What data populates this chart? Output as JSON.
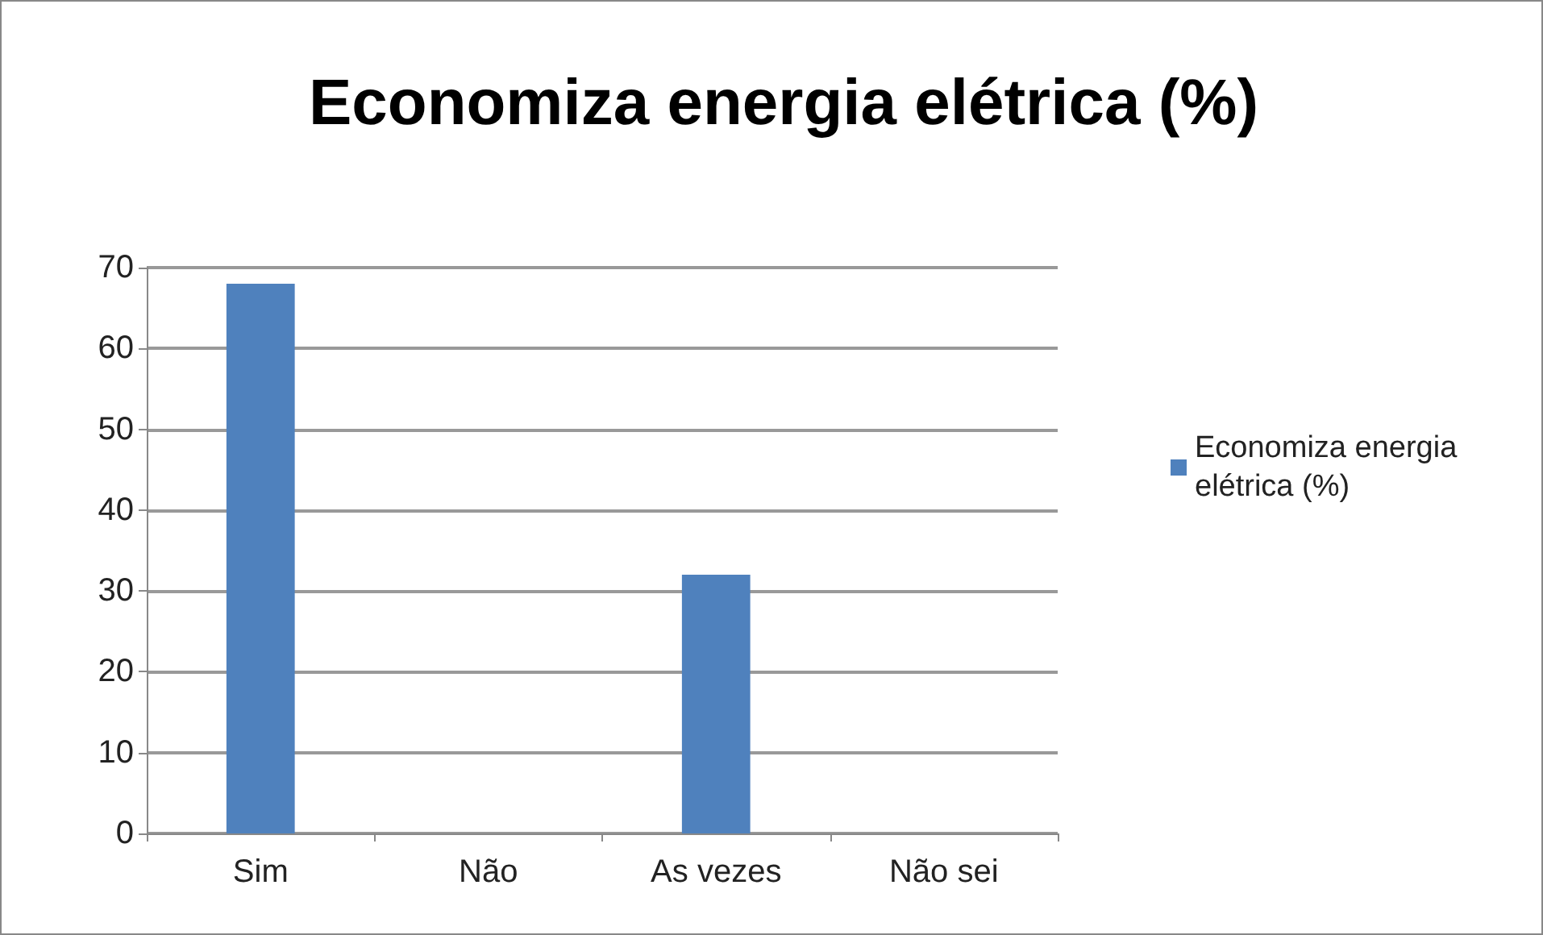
{
  "chart_data": {
    "type": "bar",
    "title": "Economiza energia elétrica (%)",
    "categories": [
      "Sim",
      "Não",
      "As vezes",
      "Não sei"
    ],
    "series": [
      {
        "name": "Economiza energia elétrica (%)",
        "color": "#4f81bd",
        "values": [
          68,
          0,
          32,
          0
        ]
      }
    ],
    "ylim": [
      0,
      70
    ],
    "yticks": [
      0,
      10,
      20,
      30,
      40,
      50,
      60,
      70
    ],
    "grid": "y",
    "legend": "right"
  }
}
